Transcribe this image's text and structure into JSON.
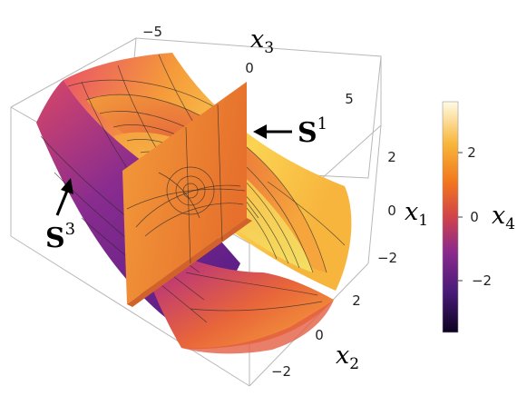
{
  "figure": {
    "x3_ticks": [
      "−5",
      "0",
      "5"
    ],
    "x1_ticks": [
      "2",
      "0",
      "−2"
    ],
    "x2_ticks": [
      "2",
      "0",
      "−2"
    ],
    "colorbar_ticks": [
      "2",
      "0",
      "−2"
    ],
    "axis_labels": {
      "x3": {
        "base": "x",
        "sub": "3"
      },
      "x1": {
        "base": "x",
        "sub": "1"
      },
      "x2": {
        "base": "x",
        "sub": "2"
      },
      "x4": {
        "base": "x",
        "sub": "4"
      }
    },
    "annotations": {
      "s1": {
        "base": "S",
        "sup": "1"
      },
      "s3": {
        "base": "S",
        "sup": "3"
      }
    }
  }
}
